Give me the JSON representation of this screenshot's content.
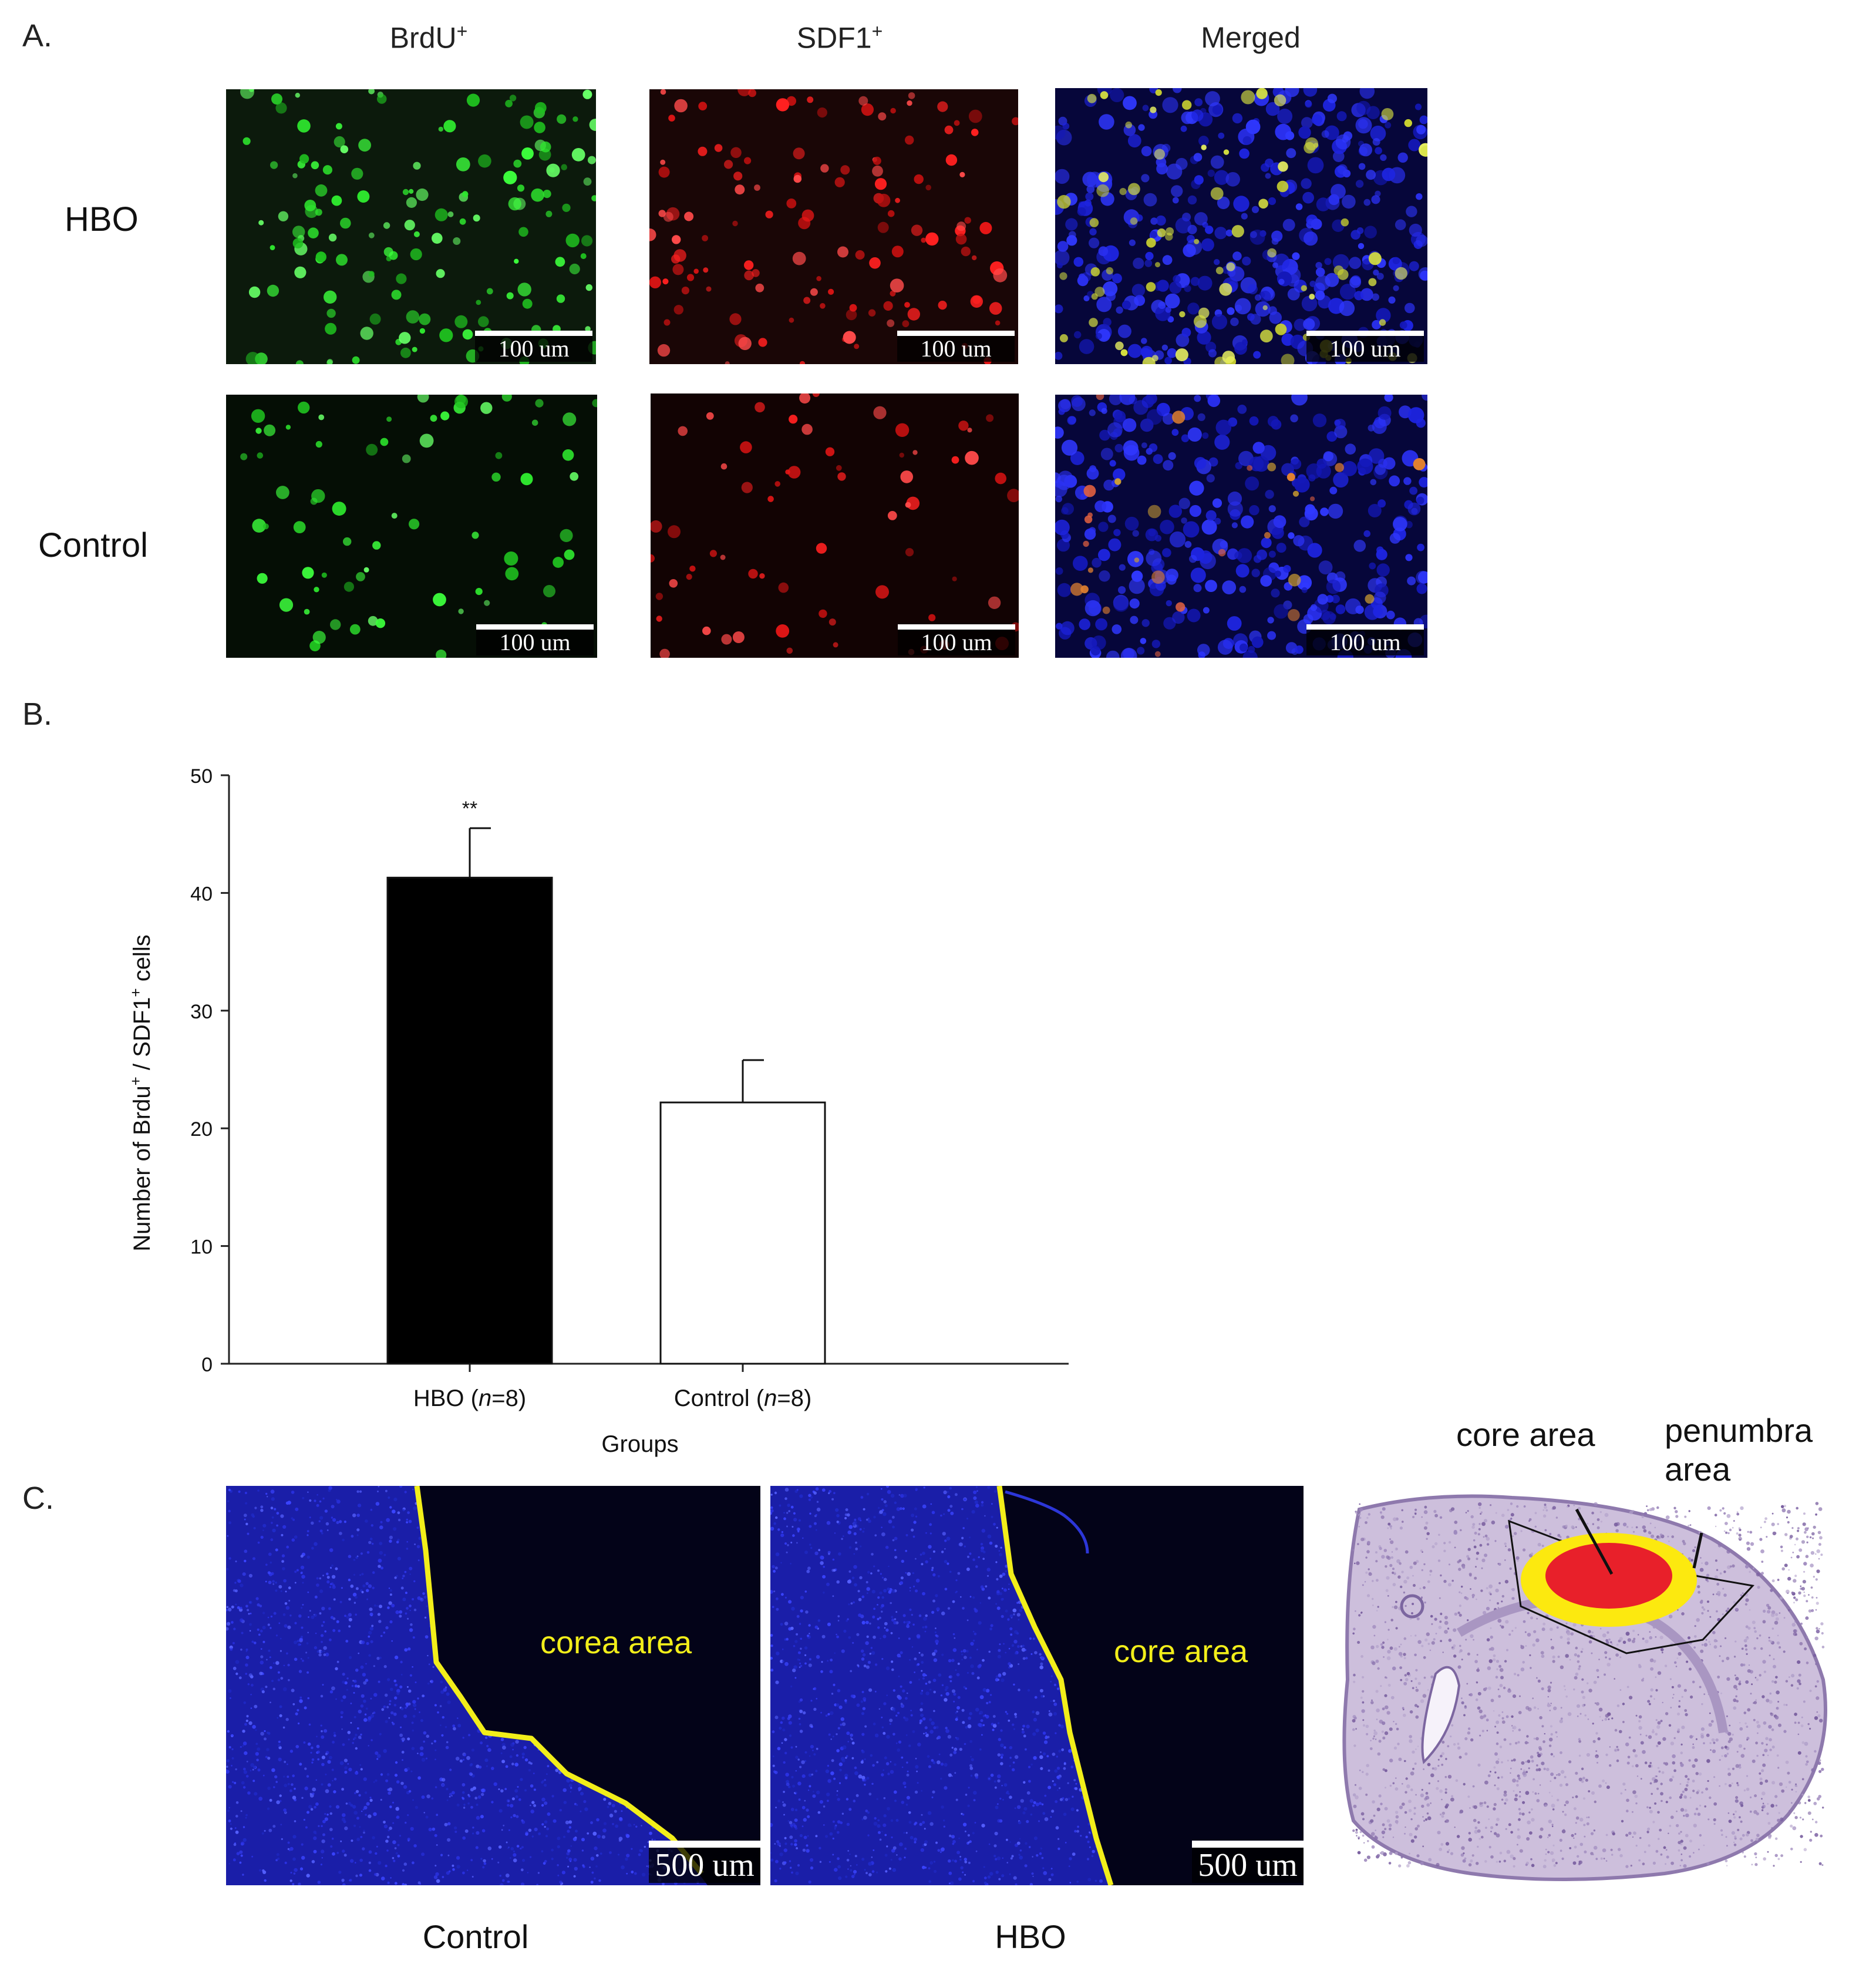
{
  "panel_a": {
    "letter": "A.",
    "columns": [
      {
        "label": "BrdU",
        "sup": "+"
      },
      {
        "label": "SDF1",
        "sup": "+"
      },
      {
        "label": "Merged",
        "sup": ""
      }
    ],
    "rows": [
      "HBO",
      "Control"
    ],
    "scale_label": "100 um"
  },
  "panel_b": {
    "letter": "B.",
    "significance": "**"
  },
  "chart_data": {
    "type": "bar",
    "categories": [
      "HBO (n=8)",
      "Control (n=8)"
    ],
    "values": [
      41.3,
      22.2
    ],
    "errors": [
      4.2,
      3.6
    ],
    "bar_colors": [
      "#000000",
      "#ffffff"
    ],
    "ylabel_parts": {
      "pre": "Number of Brdu",
      "sup1": "+",
      "mid": " / SDF1",
      "sup2": "+",
      "post": " cells"
    },
    "xlabel": "Groups",
    "ylim": [
      0,
      50
    ],
    "yticks": [
      0,
      10,
      20,
      30,
      40,
      50
    ],
    "annotation": "**"
  },
  "panel_c": {
    "letter": "C.",
    "control_caption": "Control",
    "hbo_caption": "HBO",
    "control_region_label": "corea area",
    "hbo_region_label": "core area",
    "scale_label": "500 um",
    "diagram_core_label": "core area",
    "diagram_penumbra_label_1": "penumbra",
    "diagram_penumbra_label_2": "area"
  },
  "colors": {
    "brdu": "#22cc22",
    "sdf1": "#dd1111",
    "dapi": "#1f28d8",
    "boundary": "#f2ee1a",
    "core": "#e8202a",
    "penumbra": "#fce90f",
    "tissue": "#b7a3c9"
  }
}
